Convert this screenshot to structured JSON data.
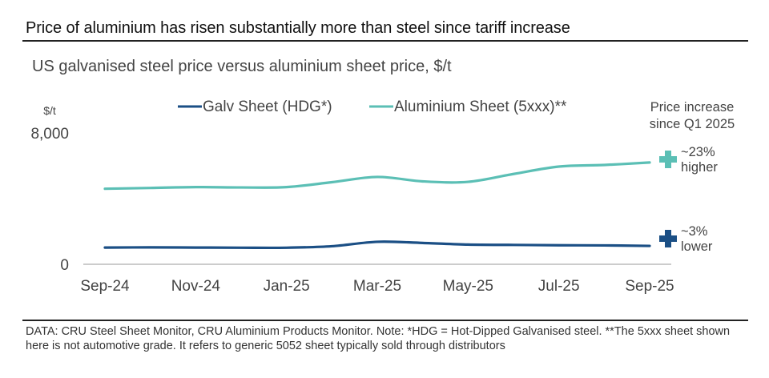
{
  "chart_data": {
    "type": "line",
    "title": "Price of aluminium has risen substantially more than steel since tariff increase",
    "subtitle": "US galvanised steel price versus aluminium sheet price, $/t",
    "ylabel": "$/t",
    "xlabel": "",
    "ylim": [
      0,
      8000
    ],
    "yticks": [
      "0",
      "8,000"
    ],
    "ytick_values": [
      0,
      8000
    ],
    "x": [
      "Sep-24",
      "Oct-24",
      "Nov-24",
      "Dec-24",
      "Jan-25",
      "Feb-25",
      "Mar-25",
      "Apr-25",
      "May-25",
      "Jun-25",
      "Jul-25",
      "Aug-25",
      "Sep-25"
    ],
    "xtick_labels": [
      "Sep-24",
      "Nov-24",
      "Jan-25",
      "Mar-25",
      "May-25",
      "Jul-25",
      "Sep-25"
    ],
    "grid": false,
    "legend_position": "top-center",
    "series": [
      {
        "name": "Galv Sheet (HDG*)",
        "color": "#1b4f85",
        "values": [
          1020,
          1030,
          1020,
          1010,
          1010,
          1100,
          1370,
          1300,
          1200,
          1180,
          1160,
          1150,
          1120
        ]
      },
      {
        "name": "Aluminium Sheet (5xxx)**",
        "color": "#5bbfb5",
        "values": [
          4600,
          4650,
          4700,
          4680,
          4700,
          5000,
          5320,
          5050,
          5020,
          5500,
          5950,
          6050,
          6200
        ]
      }
    ],
    "annotations": {
      "header": [
        "Price increase",
        "since Q1 2025"
      ],
      "items": [
        {
          "series": "Aluminium Sheet (5xxx)**",
          "marker": "plus",
          "color": "#5bbfb5",
          "lines": [
            "~23%",
            "higher"
          ]
        },
        {
          "series": "Galv Sheet (HDG*)",
          "marker": "plus",
          "color": "#1b4f85",
          "lines": [
            "~3%",
            "lower"
          ]
        }
      ]
    }
  },
  "footnote": "DATA: CRU Steel Sheet Monitor, CRU Aluminium Products Monitor. Note: *HDG = Hot-Dipped Galvanised steel. **The 5xxx sheet shown here is not automotive grade. It refers to generic 5052 sheet typically sold through distributors"
}
